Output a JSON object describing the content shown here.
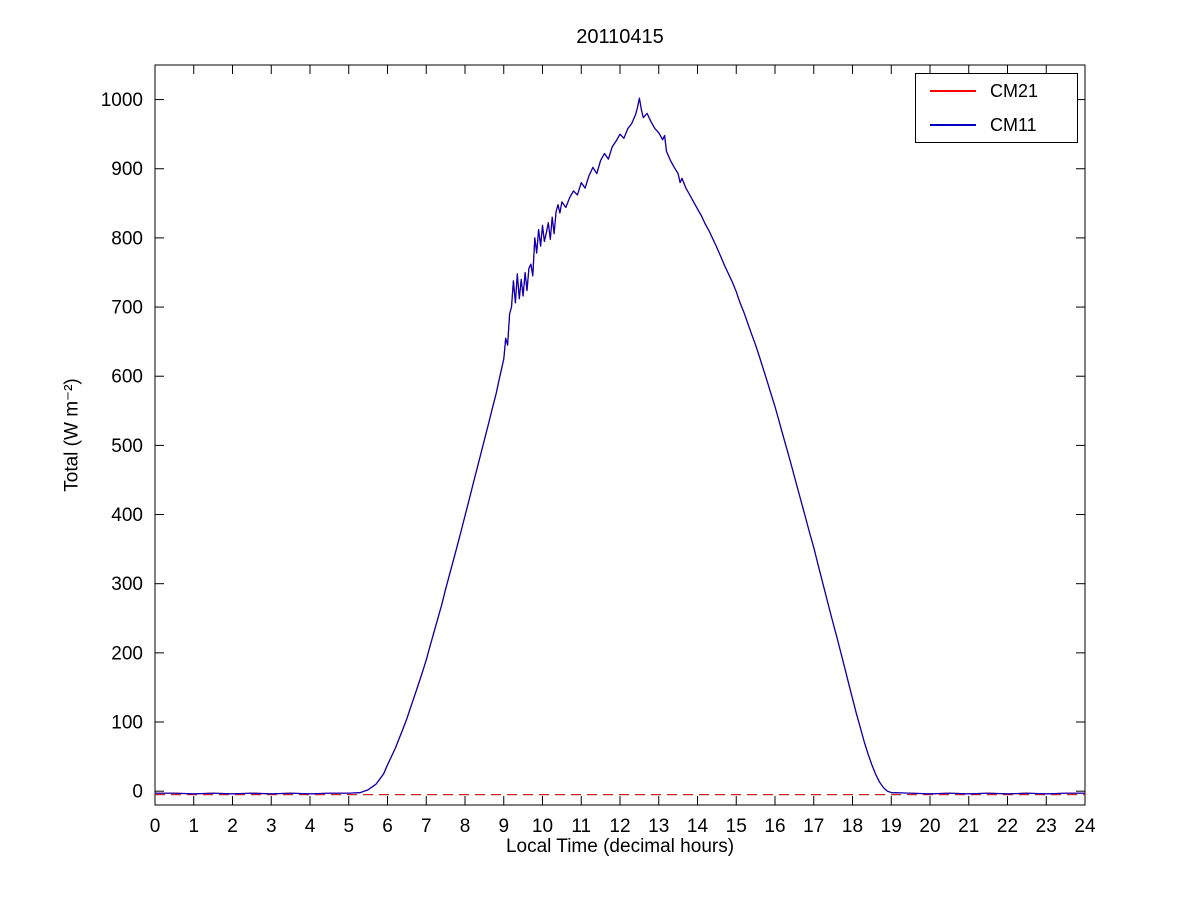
{
  "chart_data": {
    "type": "line",
    "title": "20110415",
    "xlabel": "Local Time (decimal hours)",
    "ylabel": "Total (W m⁻²)",
    "xlim": [
      0,
      24
    ],
    "ylim": [
      -20,
      1050
    ],
    "xticks": [
      0,
      1,
      2,
      3,
      4,
      5,
      6,
      7,
      8,
      9,
      10,
      11,
      12,
      13,
      14,
      15,
      16,
      17,
      18,
      19,
      20,
      21,
      22,
      23,
      24
    ],
    "yticks": [
      0,
      100,
      200,
      300,
      400,
      500,
      600,
      700,
      800,
      900,
      1000
    ],
    "grid": false,
    "legend_position": "top-right",
    "series": [
      {
        "name": "CM21",
        "color": "#ff0000",
        "style": "solid",
        "note": "overlaps CM11 almost exactly; drawn beneath"
      },
      {
        "name": "CM11",
        "color": "#0000c0",
        "style": "solid",
        "note": "drawn on top"
      }
    ],
    "zero_line": {
      "y": -5,
      "color": "#cc2222",
      "style": "dashed"
    },
    "x": [
      0,
      0.5,
      1,
      1.5,
      2,
      2.5,
      3,
      3.5,
      4,
      4.5,
      5,
      5.3,
      5.5,
      5.7,
      5.9,
      6,
      6.1,
      6.2,
      6.3,
      6.4,
      6.5,
      6.6,
      6.7,
      6.8,
      6.9,
      7,
      7.1,
      7.2,
      7.3,
      7.4,
      7.5,
      7.6,
      7.7,
      7.8,
      7.9,
      8,
      8.1,
      8.2,
      8.3,
      8.4,
      8.5,
      8.6,
      8.7,
      8.8,
      8.9,
      9,
      9.05,
      9.1,
      9.15,
      9.2,
      9.25,
      9.3,
      9.35,
      9.4,
      9.45,
      9.5,
      9.55,
      9.6,
      9.65,
      9.7,
      9.75,
      9.8,
      9.85,
      9.9,
      9.95,
      10,
      10.05,
      10.1,
      10.15,
      10.2,
      10.25,
      10.3,
      10.35,
      10.4,
      10.45,
      10.5,
      10.6,
      10.7,
      10.8,
      10.9,
      11,
      11.1,
      11.2,
      11.3,
      11.4,
      11.5,
      11.6,
      11.7,
      11.8,
      11.9,
      12,
      12.1,
      12.2,
      12.3,
      12.4,
      12.45,
      12.5,
      12.55,
      12.6,
      12.7,
      12.8,
      12.9,
      13,
      13.1,
      13.15,
      13.2,
      13.3,
      13.4,
      13.5,
      13.55,
      13.6,
      13.7,
      13.8,
      13.9,
      14,
      14.1,
      14.2,
      14.3,
      14.4,
      14.5,
      14.6,
      14.7,
      14.8,
      14.9,
      15,
      15.1,
      15.2,
      15.3,
      15.4,
      15.5,
      15.6,
      15.7,
      15.8,
      15.9,
      16,
      16.1,
      16.2,
      16.3,
      16.4,
      16.5,
      16.6,
      16.7,
      16.8,
      16.9,
      17,
      17.1,
      17.2,
      17.3,
      17.4,
      17.5,
      17.6,
      17.7,
      17.8,
      17.9,
      18,
      18.1,
      18.2,
      18.3,
      18.4,
      18.5,
      18.6,
      18.7,
      18.8,
      18.9,
      19,
      19.5,
      20,
      20.5,
      21,
      21.5,
      22,
      22.5,
      23,
      23.5,
      24
    ],
    "y": [
      -3,
      -3,
      -4,
      -3,
      -4,
      -3,
      -4,
      -3,
      -4,
      -3,
      -3,
      -2,
      2,
      10,
      25,
      38,
      50,
      62,
      76,
      90,
      105,
      122,
      138,
      155,
      172,
      190,
      210,
      230,
      250,
      270,
      292,
      313,
      334,
      355,
      376,
      398,
      420,
      442,
      464,
      486,
      508,
      530,
      552,
      574,
      600,
      625,
      655,
      645,
      690,
      700,
      738,
      706,
      748,
      712,
      740,
      716,
      750,
      724,
      756,
      762,
      745,
      800,
      778,
      812,
      788,
      818,
      795,
      808,
      822,
      798,
      830,
      806,
      838,
      848,
      836,
      852,
      844,
      858,
      868,
      862,
      880,
      872,
      890,
      902,
      893,
      912,
      922,
      914,
      932,
      940,
      950,
      944,
      958,
      965,
      978,
      988,
      1002,
      986,
      974,
      980,
      968,
      958,
      952,
      942,
      948,
      925,
      912,
      902,
      893,
      880,
      886,
      872,
      862,
      852,
      842,
      832,
      820,
      810,
      798,
      786,
      773,
      760,
      748,
      736,
      722,
      706,
      692,
      676,
      660,
      645,
      628,
      610,
      592,
      574,
      556,
      536,
      516,
      496,
      476,
      455,
      434,
      414,
      393,
      372,
      352,
      330,
      308,
      286,
      264,
      243,
      222,
      200,
      178,
      156,
      134,
      112,
      92,
      72,
      54,
      38,
      24,
      13,
      5,
      0,
      -2,
      -3,
      -4,
      -3,
      -4,
      -3,
      -4,
      -3,
      -4,
      -3,
      -3
    ]
  }
}
